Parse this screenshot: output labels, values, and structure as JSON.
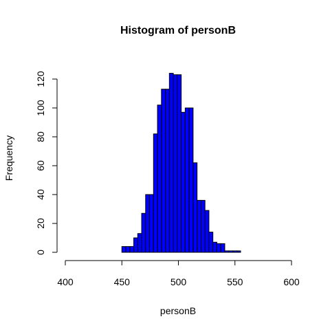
{
  "chart_data": {
    "type": "bar",
    "title": "Histogram of personB",
    "xlabel": "personB",
    "ylabel": "Frequency",
    "xlim": [
      400,
      600
    ],
    "ylim": [
      0,
      125
    ],
    "x_ticks": [
      "400",
      "450",
      "500",
      "550",
      "600"
    ],
    "y_ticks": [
      "0",
      "20",
      "40",
      "60",
      "80",
      "100",
      "120"
    ],
    "bin_width": 3.5,
    "bins": [
      {
        "start": 450.0,
        "end": 453.5,
        "count": 4
      },
      {
        "start": 453.5,
        "end": 457.0,
        "count": 4
      },
      {
        "start": 457.0,
        "end": 460.5,
        "count": 4
      },
      {
        "start": 460.5,
        "end": 464.0,
        "count": 10
      },
      {
        "start": 464.0,
        "end": 467.5,
        "count": 13
      },
      {
        "start": 467.5,
        "end": 471.0,
        "count": 27
      },
      {
        "start": 471.0,
        "end": 474.5,
        "count": 40
      },
      {
        "start": 474.5,
        "end": 478.0,
        "count": 40
      },
      {
        "start": 478.0,
        "end": 481.5,
        "count": 82
      },
      {
        "start": 481.5,
        "end": 485.0,
        "count": 102
      },
      {
        "start": 485.0,
        "end": 488.5,
        "count": 113
      },
      {
        "start": 488.5,
        "end": 492.0,
        "count": 113
      },
      {
        "start": 492.0,
        "end": 495.5,
        "count": 124
      },
      {
        "start": 495.5,
        "end": 499.0,
        "count": 123
      },
      {
        "start": 499.0,
        "end": 502.5,
        "count": 123
      },
      {
        "start": 502.5,
        "end": 506.0,
        "count": 97
      },
      {
        "start": 506.0,
        "end": 509.5,
        "count": 100
      },
      {
        "start": 509.5,
        "end": 513.0,
        "count": 100
      },
      {
        "start": 513.0,
        "end": 516.5,
        "count": 62
      },
      {
        "start": 516.5,
        "end": 520.0,
        "count": 36
      },
      {
        "start": 520.0,
        "end": 523.5,
        "count": 36
      },
      {
        "start": 523.5,
        "end": 527.0,
        "count": 29
      },
      {
        "start": 527.0,
        "end": 530.5,
        "count": 14
      },
      {
        "start": 530.5,
        "end": 534.0,
        "count": 7
      },
      {
        "start": 534.0,
        "end": 537.5,
        "count": 6
      },
      {
        "start": 537.5,
        "end": 541.0,
        "count": 6
      },
      {
        "start": 541.0,
        "end": 544.5,
        "count": 1
      },
      {
        "start": 544.5,
        "end": 548.0,
        "count": 1
      },
      {
        "start": 548.0,
        "end": 551.5,
        "count": 1
      },
      {
        "start": 551.5,
        "end": 555.0,
        "count": 1
      }
    ],
    "bar_fill": "#0000ff",
    "bar_stroke": "#000000",
    "grid": false,
    "legend": "none"
  }
}
